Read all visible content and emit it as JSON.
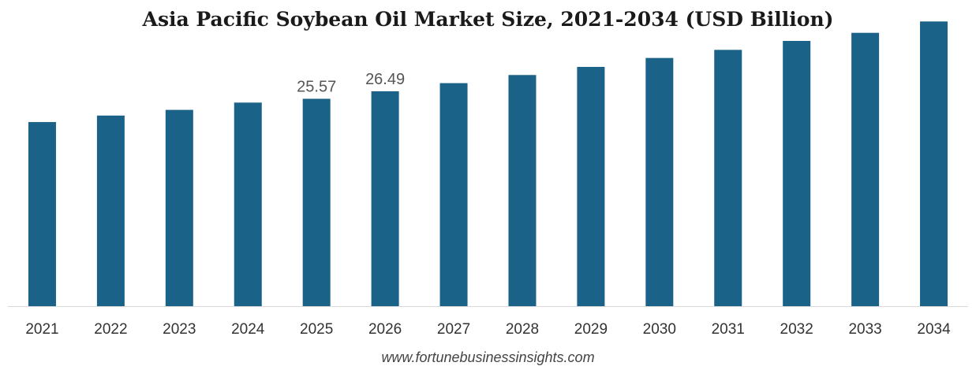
{
  "chart_data": {
    "type": "bar",
    "title": "Asia Pacific Soybean Oil Market Size, 2021-2034 (USD Billion)",
    "xlabel": "",
    "ylabel": "",
    "categories": [
      "2021",
      "2022",
      "2023",
      "2024",
      "2025",
      "2026",
      "2027",
      "2028",
      "2029",
      "2030",
      "2031",
      "2032",
      "2033",
      "2034"
    ],
    "values": [
      22.7,
      23.5,
      24.2,
      25.1,
      25.57,
      26.49,
      27.5,
      28.5,
      29.5,
      30.6,
      31.6,
      32.7,
      33.7,
      35.1
    ],
    "data_labels": [
      {
        "category": "2025",
        "text": "25.57"
      },
      {
        "category": "2026",
        "text": "26.49"
      }
    ],
    "ylim": [
      0,
      36
    ],
    "grid": false,
    "bar_color": "#1b6289",
    "axis_color": "#d9d9d9"
  },
  "footer": {
    "source": "www.fortunebusinessinsights.com"
  }
}
